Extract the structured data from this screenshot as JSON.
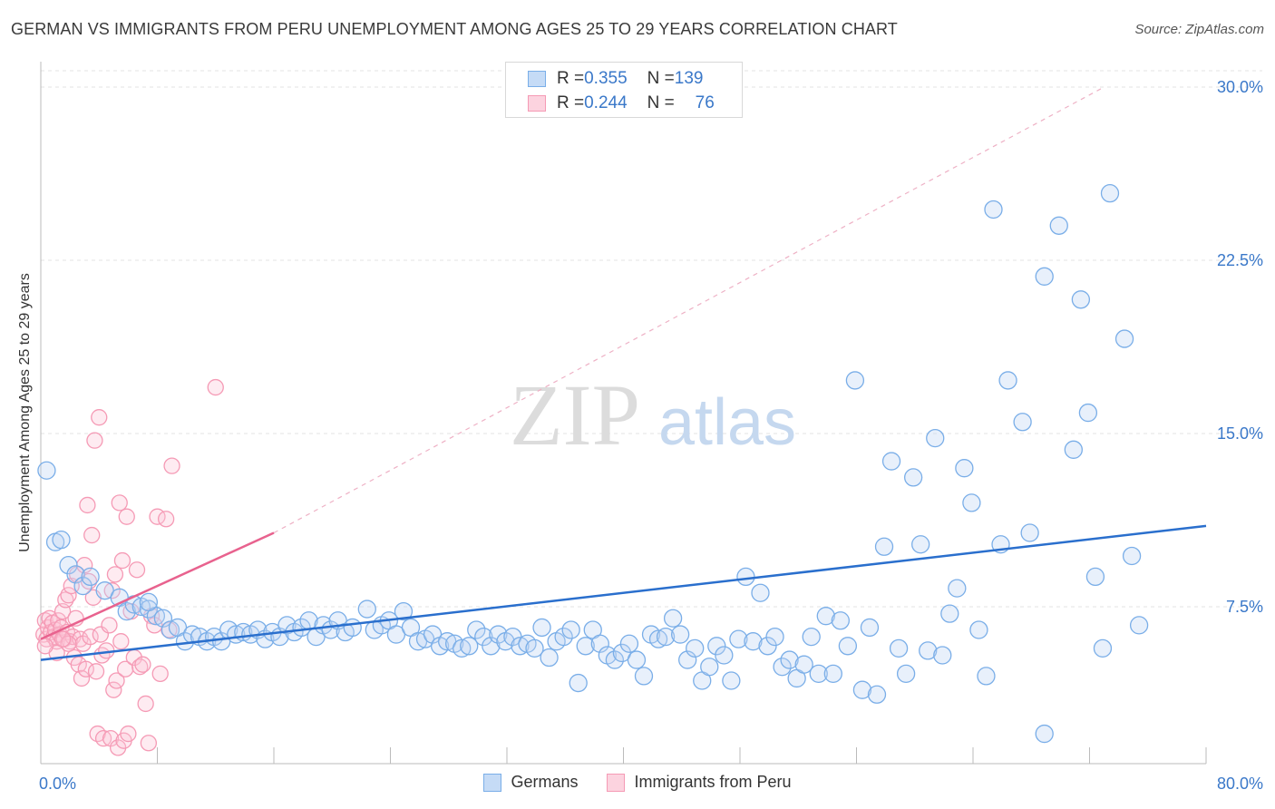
{
  "title": "GERMAN VS IMMIGRANTS FROM PERU UNEMPLOYMENT AMONG AGES 25 TO 29 YEARS CORRELATION CHART",
  "source": "Source: ZipAtlas.com",
  "watermark": {
    "zip": "ZIP",
    "atlas": "atlas"
  },
  "legend_top": [
    {
      "r_label": "R = ",
      "r_value": "0.355",
      "n_label": "N = ",
      "n_value": "139",
      "color": "#7aaee8"
    },
    {
      "r_label": "R = ",
      "r_value": "0.244",
      "n_label": "N = ",
      "n_value": "76",
      "color": "#f59ab5"
    }
  ],
  "chart_data": {
    "type": "scatter",
    "ylabel": "Unemployment Among Ages 25 to 29 years",
    "x_tick_labels": [
      "0.0%",
      "80.0%"
    ],
    "y_tick_labels": [
      "7.5%",
      "15.0%",
      "22.5%",
      "30.0%"
    ],
    "xlim": [
      0,
      80
    ],
    "ylim": [
      0,
      30
    ],
    "x_ticks": [
      0,
      8,
      16,
      24,
      32,
      40,
      48,
      56,
      64,
      72,
      80
    ],
    "y_ticks": [
      7.5,
      15,
      22.5,
      30
    ],
    "grid": true,
    "legend_position": "bottom",
    "series": [
      {
        "name": "Germans",
        "color": "#7aaee8",
        "line_color": "#2a6fcd",
        "trend": {
          "x": [
            0,
            80
          ],
          "y": [
            5.2,
            11.0
          ]
        },
        "points": [
          [
            0.4,
            13.4
          ],
          [
            1.0,
            10.3
          ],
          [
            1.4,
            10.4
          ],
          [
            1.9,
            9.3
          ],
          [
            2.4,
            8.9
          ],
          [
            2.9,
            8.4
          ],
          [
            3.4,
            8.8
          ],
          [
            4.4,
            8.2
          ],
          [
            5.4,
            7.9
          ],
          [
            5.9,
            7.3
          ],
          [
            6.4,
            7.6
          ],
          [
            6.9,
            7.5
          ],
          [
            7.4,
            7.4
          ],
          [
            7.9,
            7.1
          ],
          [
            7.4,
            7.7
          ],
          [
            8.4,
            7.0
          ],
          [
            8.9,
            6.5
          ],
          [
            9.4,
            6.6
          ],
          [
            9.9,
            6.0
          ],
          [
            10.4,
            6.3
          ],
          [
            10.9,
            6.2
          ],
          [
            11.4,
            6.0
          ],
          [
            11.9,
            6.2
          ],
          [
            12.4,
            6.0
          ],
          [
            12.9,
            6.5
          ],
          [
            13.4,
            6.3
          ],
          [
            13.9,
            6.4
          ],
          [
            14.4,
            6.3
          ],
          [
            14.9,
            6.5
          ],
          [
            15.4,
            6.1
          ],
          [
            15.9,
            6.4
          ],
          [
            16.4,
            6.2
          ],
          [
            16.9,
            6.7
          ],
          [
            17.4,
            6.4
          ],
          [
            17.9,
            6.6
          ],
          [
            18.4,
            6.9
          ],
          [
            18.9,
            6.2
          ],
          [
            19.4,
            6.7
          ],
          [
            19.9,
            6.5
          ],
          [
            20.4,
            6.9
          ],
          [
            20.9,
            6.4
          ],
          [
            21.4,
            6.6
          ],
          [
            22.4,
            7.4
          ],
          [
            22.9,
            6.5
          ],
          [
            23.4,
            6.7
          ],
          [
            23.9,
            6.9
          ],
          [
            24.4,
            6.3
          ],
          [
            24.9,
            7.3
          ],
          [
            25.4,
            6.6
          ],
          [
            25.9,
            6.0
          ],
          [
            26.4,
            6.1
          ],
          [
            26.9,
            6.3
          ],
          [
            27.4,
            5.8
          ],
          [
            27.9,
            6.0
          ],
          [
            28.4,
            5.9
          ],
          [
            28.9,
            5.7
          ],
          [
            29.4,
            5.8
          ],
          [
            29.9,
            6.5
          ],
          [
            30.4,
            6.2
          ],
          [
            30.9,
            5.8
          ],
          [
            31.4,
            6.3
          ],
          [
            31.9,
            6.0
          ],
          [
            32.4,
            6.2
          ],
          [
            32.9,
            5.8
          ],
          [
            33.4,
            5.9
          ],
          [
            33.9,
            5.7
          ],
          [
            34.4,
            6.6
          ],
          [
            34.9,
            5.3
          ],
          [
            35.4,
            6.0
          ],
          [
            35.9,
            6.2
          ],
          [
            36.4,
            6.5
          ],
          [
            36.9,
            4.2
          ],
          [
            37.4,
            5.8
          ],
          [
            37.9,
            6.5
          ],
          [
            38.4,
            5.9
          ],
          [
            38.9,
            5.4
          ],
          [
            39.4,
            5.2
          ],
          [
            39.9,
            5.5
          ],
          [
            40.4,
            5.9
          ],
          [
            40.9,
            5.2
          ],
          [
            41.4,
            4.5
          ],
          [
            41.9,
            6.3
          ],
          [
            42.4,
            6.1
          ],
          [
            42.9,
            6.2
          ],
          [
            43.4,
            7.0
          ],
          [
            43.9,
            6.3
          ],
          [
            44.4,
            5.2
          ],
          [
            44.9,
            5.7
          ],
          [
            45.4,
            4.3
          ],
          [
            45.9,
            4.9
          ],
          [
            46.4,
            5.8
          ],
          [
            46.9,
            5.4
          ],
          [
            47.4,
            4.3
          ],
          [
            47.9,
            6.1
          ],
          [
            48.4,
            8.8
          ],
          [
            48.9,
            6.0
          ],
          [
            49.4,
            8.1
          ],
          [
            49.9,
            5.8
          ],
          [
            50.4,
            6.2
          ],
          [
            50.9,
            4.9
          ],
          [
            51.4,
            5.2
          ],
          [
            51.9,
            4.4
          ],
          [
            52.4,
            5.0
          ],
          [
            52.9,
            6.2
          ],
          [
            53.4,
            4.6
          ],
          [
            53.9,
            7.1
          ],
          [
            54.4,
            4.6
          ],
          [
            54.9,
            6.9
          ],
          [
            55.4,
            5.8
          ],
          [
            55.9,
            17.3
          ],
          [
            56.4,
            3.9
          ],
          [
            56.9,
            6.6
          ],
          [
            57.4,
            3.7
          ],
          [
            57.9,
            10.1
          ],
          [
            58.4,
            13.8
          ],
          [
            58.9,
            5.7
          ],
          [
            59.4,
            4.6
          ],
          [
            59.9,
            13.1
          ],
          [
            60.4,
            10.2
          ],
          [
            60.9,
            5.6
          ],
          [
            61.4,
            14.8
          ],
          [
            61.9,
            5.4
          ],
          [
            62.4,
            7.2
          ],
          [
            62.9,
            8.3
          ],
          [
            63.4,
            13.5
          ],
          [
            63.9,
            12.0
          ],
          [
            64.4,
            6.5
          ],
          [
            64.9,
            4.5
          ],
          [
            65.4,
            24.7
          ],
          [
            65.9,
            10.2
          ],
          [
            66.4,
            17.3
          ],
          [
            67.4,
            15.5
          ],
          [
            67.9,
            10.7
          ],
          [
            68.9,
            21.8
          ],
          [
            68.9,
            2.0
          ],
          [
            69.9,
            24.0
          ],
          [
            70.9,
            14.3
          ],
          [
            71.4,
            20.8
          ],
          [
            71.9,
            15.9
          ],
          [
            72.4,
            8.8
          ],
          [
            72.9,
            5.7
          ],
          [
            73.4,
            25.4
          ],
          [
            74.4,
            19.1
          ],
          [
            74.9,
            9.7
          ],
          [
            75.4,
            6.7
          ]
        ]
      },
      {
        "name": "Immigrants from Peru",
        "color": "#f59ab5",
        "line_color": "#e8628e",
        "trend": {
          "x": [
            0,
            16
          ],
          "y": [
            6.1,
            10.7
          ]
        },
        "trend_extension": {
          "x": [
            16,
            73
          ],
          "y": [
            10.7,
            30.0
          ]
        },
        "points": [
          [
            0.2,
            6.3
          ],
          [
            0.3,
            6.9
          ],
          [
            0.4,
            6.1
          ],
          [
            0.5,
            6.6
          ],
          [
            0.6,
            7.0
          ],
          [
            0.7,
            6.4
          ],
          [
            0.8,
            6.8
          ],
          [
            0.9,
            6.2
          ],
          [
            1.0,
            6.5
          ],
          [
            1.1,
            6.0
          ],
          [
            1.2,
            6.9
          ],
          [
            1.3,
            6.3
          ],
          [
            1.4,
            6.6
          ],
          [
            1.5,
            7.3
          ],
          [
            1.6,
            6.1
          ],
          [
            1.7,
            7.8
          ],
          [
            1.8,
            6.4
          ],
          [
            1.9,
            8.0
          ],
          [
            2.0,
            6.0
          ],
          [
            2.1,
            8.4
          ],
          [
            2.2,
            6.2
          ],
          [
            2.3,
            5.3
          ],
          [
            2.4,
            7.0
          ],
          [
            2.5,
            8.9
          ],
          [
            2.6,
            5.0
          ],
          [
            2.7,
            6.1
          ],
          [
            2.8,
            4.4
          ],
          [
            2.9,
            5.9
          ],
          [
            3.0,
            9.3
          ],
          [
            3.1,
            4.8
          ],
          [
            3.2,
            11.9
          ],
          [
            3.3,
            8.6
          ],
          [
            3.4,
            6.2
          ],
          [
            3.5,
            10.6
          ],
          [
            3.6,
            7.9
          ],
          [
            3.7,
            14.7
          ],
          [
            3.8,
            4.7
          ],
          [
            3.9,
            2.0
          ],
          [
            4.0,
            15.7
          ],
          [
            4.1,
            6.3
          ],
          [
            4.2,
            5.4
          ],
          [
            4.3,
            1.8
          ],
          [
            4.5,
            5.6
          ],
          [
            4.7,
            6.7
          ],
          [
            4.8,
            1.8
          ],
          [
            4.9,
            8.2
          ],
          [
            5.0,
            3.9
          ],
          [
            5.1,
            8.9
          ],
          [
            5.2,
            4.3
          ],
          [
            5.3,
            1.4
          ],
          [
            5.4,
            12.0
          ],
          [
            5.5,
            6.0
          ],
          [
            5.6,
            9.5
          ],
          [
            5.7,
            1.7
          ],
          [
            5.8,
            4.8
          ],
          [
            5.9,
            11.4
          ],
          [
            6.0,
            2.0
          ],
          [
            6.2,
            7.3
          ],
          [
            6.4,
            5.3
          ],
          [
            6.6,
            9.1
          ],
          [
            6.8,
            4.9
          ],
          [
            7.0,
            5.0
          ],
          [
            7.2,
            3.3
          ],
          [
            7.4,
            1.6
          ],
          [
            7.6,
            7.1
          ],
          [
            7.8,
            6.7
          ],
          [
            8.0,
            11.4
          ],
          [
            8.2,
            4.6
          ],
          [
            8.6,
            11.3
          ],
          [
            8.8,
            6.5
          ],
          [
            9.0,
            13.6
          ],
          [
            12.0,
            17.0
          ],
          [
            1.1,
            5.5
          ],
          [
            1.9,
            5.9
          ],
          [
            0.3,
            5.8
          ],
          [
            1.5,
            6.1
          ]
        ]
      }
    ]
  }
}
